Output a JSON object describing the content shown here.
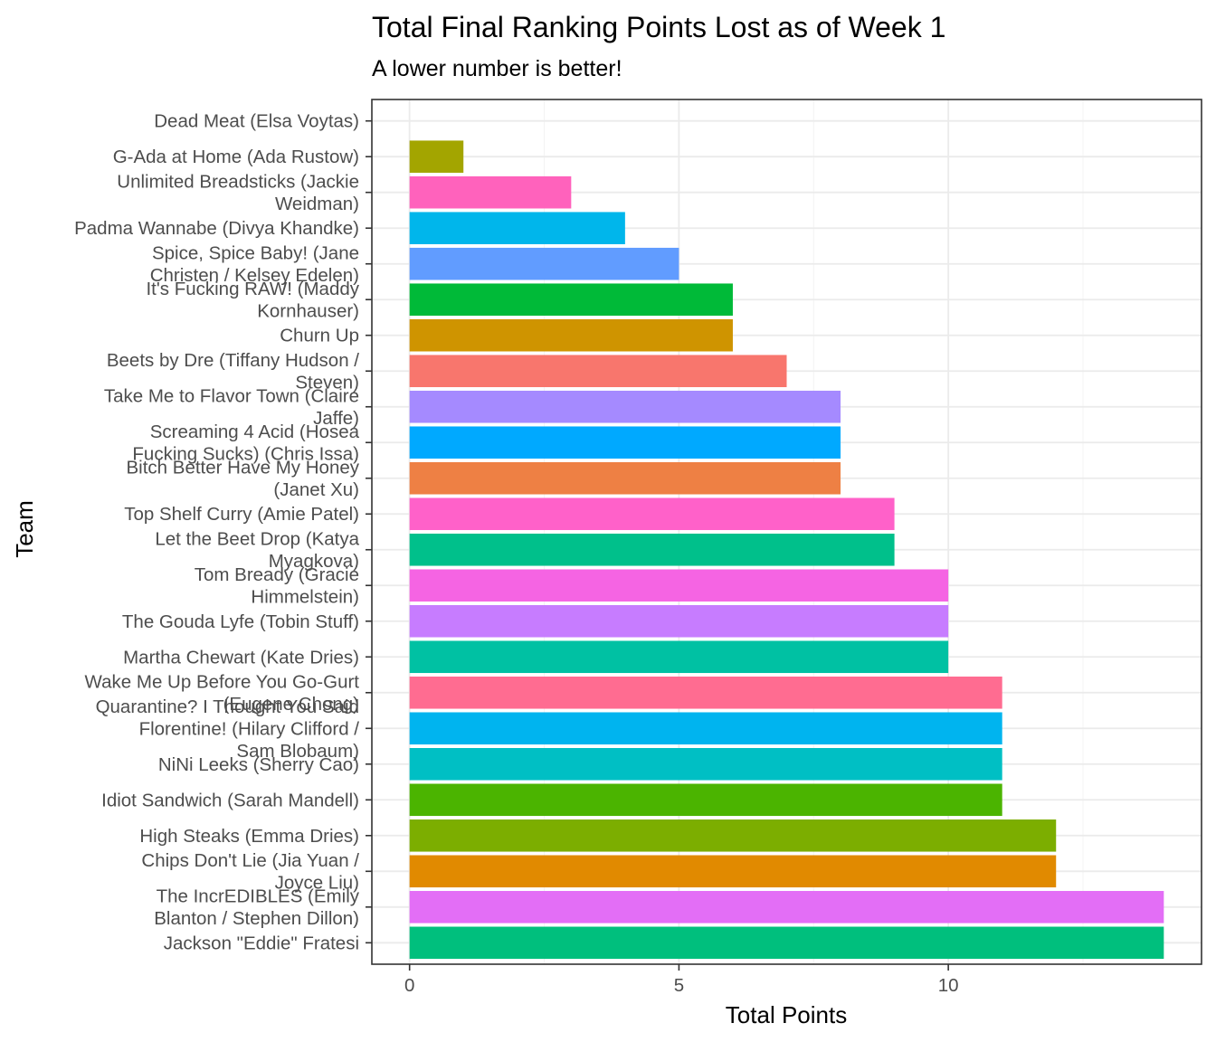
{
  "chart_data": {
    "type": "bar",
    "orientation": "horizontal",
    "title": "Total Final Ranking Points Lost as of Week 1",
    "subtitle": "A lower number is better!",
    "xlabel": "Total Points",
    "ylabel": "Team",
    "xlim": [
      -0.7,
      14.7
    ],
    "x_ticks": [
      0,
      5,
      10
    ],
    "grid": true,
    "legend": "none",
    "categories": [
      [
        "Dead Meat (Elsa Voytas)"
      ],
      [
        "G-Ada at Home (Ada Rustow)"
      ],
      [
        "Unlimited Breadsticks (Jackie",
        "Weidman)"
      ],
      [
        "Padma Wannabe (Divya Khandke)"
      ],
      [
        "Spice, Spice Baby! (Jane",
        "Christen / Kelsey Edelen)"
      ],
      [
        "It's Fucking RAW! (Maddy",
        "Kornhauser)"
      ],
      [
        "Churn Up"
      ],
      [
        "Beets by Dre (Tiffany Hudson /",
        "Steven)"
      ],
      [
        "Take Me to Flavor Town (Claire",
        "Jaffe)"
      ],
      [
        "Screaming 4 Acid (Hosea",
        "Fucking Sucks) (Chris Issa)"
      ],
      [
        "Bitch Better Have My Honey",
        "(Janet Xu)"
      ],
      [
        "Top Shelf Curry (Amie Patel)"
      ],
      [
        "Let the Beet Drop (Katya",
        "Myagkova)"
      ],
      [
        "Tom Bready (Gracie",
        "Himmelstein)"
      ],
      [
        "The Gouda Lyfe (Tobin Stuff)"
      ],
      [
        "Martha Chewart (Kate Dries)"
      ],
      [
        "Wake Me Up Before You Go-Gurt",
        "(Eugene Chong)"
      ],
      [
        "Quarantine? I Thought You Said",
        "Florentine! (Hilary Clifford /",
        "Sam Blobaum)"
      ],
      [
        "NiNi Leeks (Sherry Cao)"
      ],
      [
        "Idiot Sandwich (Sarah Mandell)"
      ],
      [
        "High Steaks (Emma Dries)"
      ],
      [
        "Chips Don't Lie (Jia Yuan /",
        "Joyce Liu)"
      ],
      [
        "The IncrEDIBLES (Emily",
        "Blanton / Stephen Dillon)"
      ],
      [
        "Jackson \"Eddie\" Fratesi"
      ]
    ],
    "values": [
      0,
      1,
      3,
      4,
      5,
      6,
      6,
      7,
      8,
      8,
      8,
      9,
      9,
      10,
      10,
      10,
      11,
      11,
      11,
      11,
      12,
      12,
      14,
      14
    ],
    "colors": [
      "#F8766D",
      "#A3A500",
      "#FF62BC",
      "#00B6EB",
      "#619CFF",
      "#00BA38",
      "#CF9400",
      "#F8766D",
      "#A58AFF",
      "#00A9FF",
      "#EE8044",
      "#FF61C9",
      "#00C08B",
      "#F564E3",
      "#C77CFF",
      "#00C1A3",
      "#FF6C91",
      "#00B4EF",
      "#00BFC4",
      "#4BB400",
      "#7CAE00",
      "#E18A00",
      "#E36EF6",
      "#00BF7D"
    ]
  }
}
